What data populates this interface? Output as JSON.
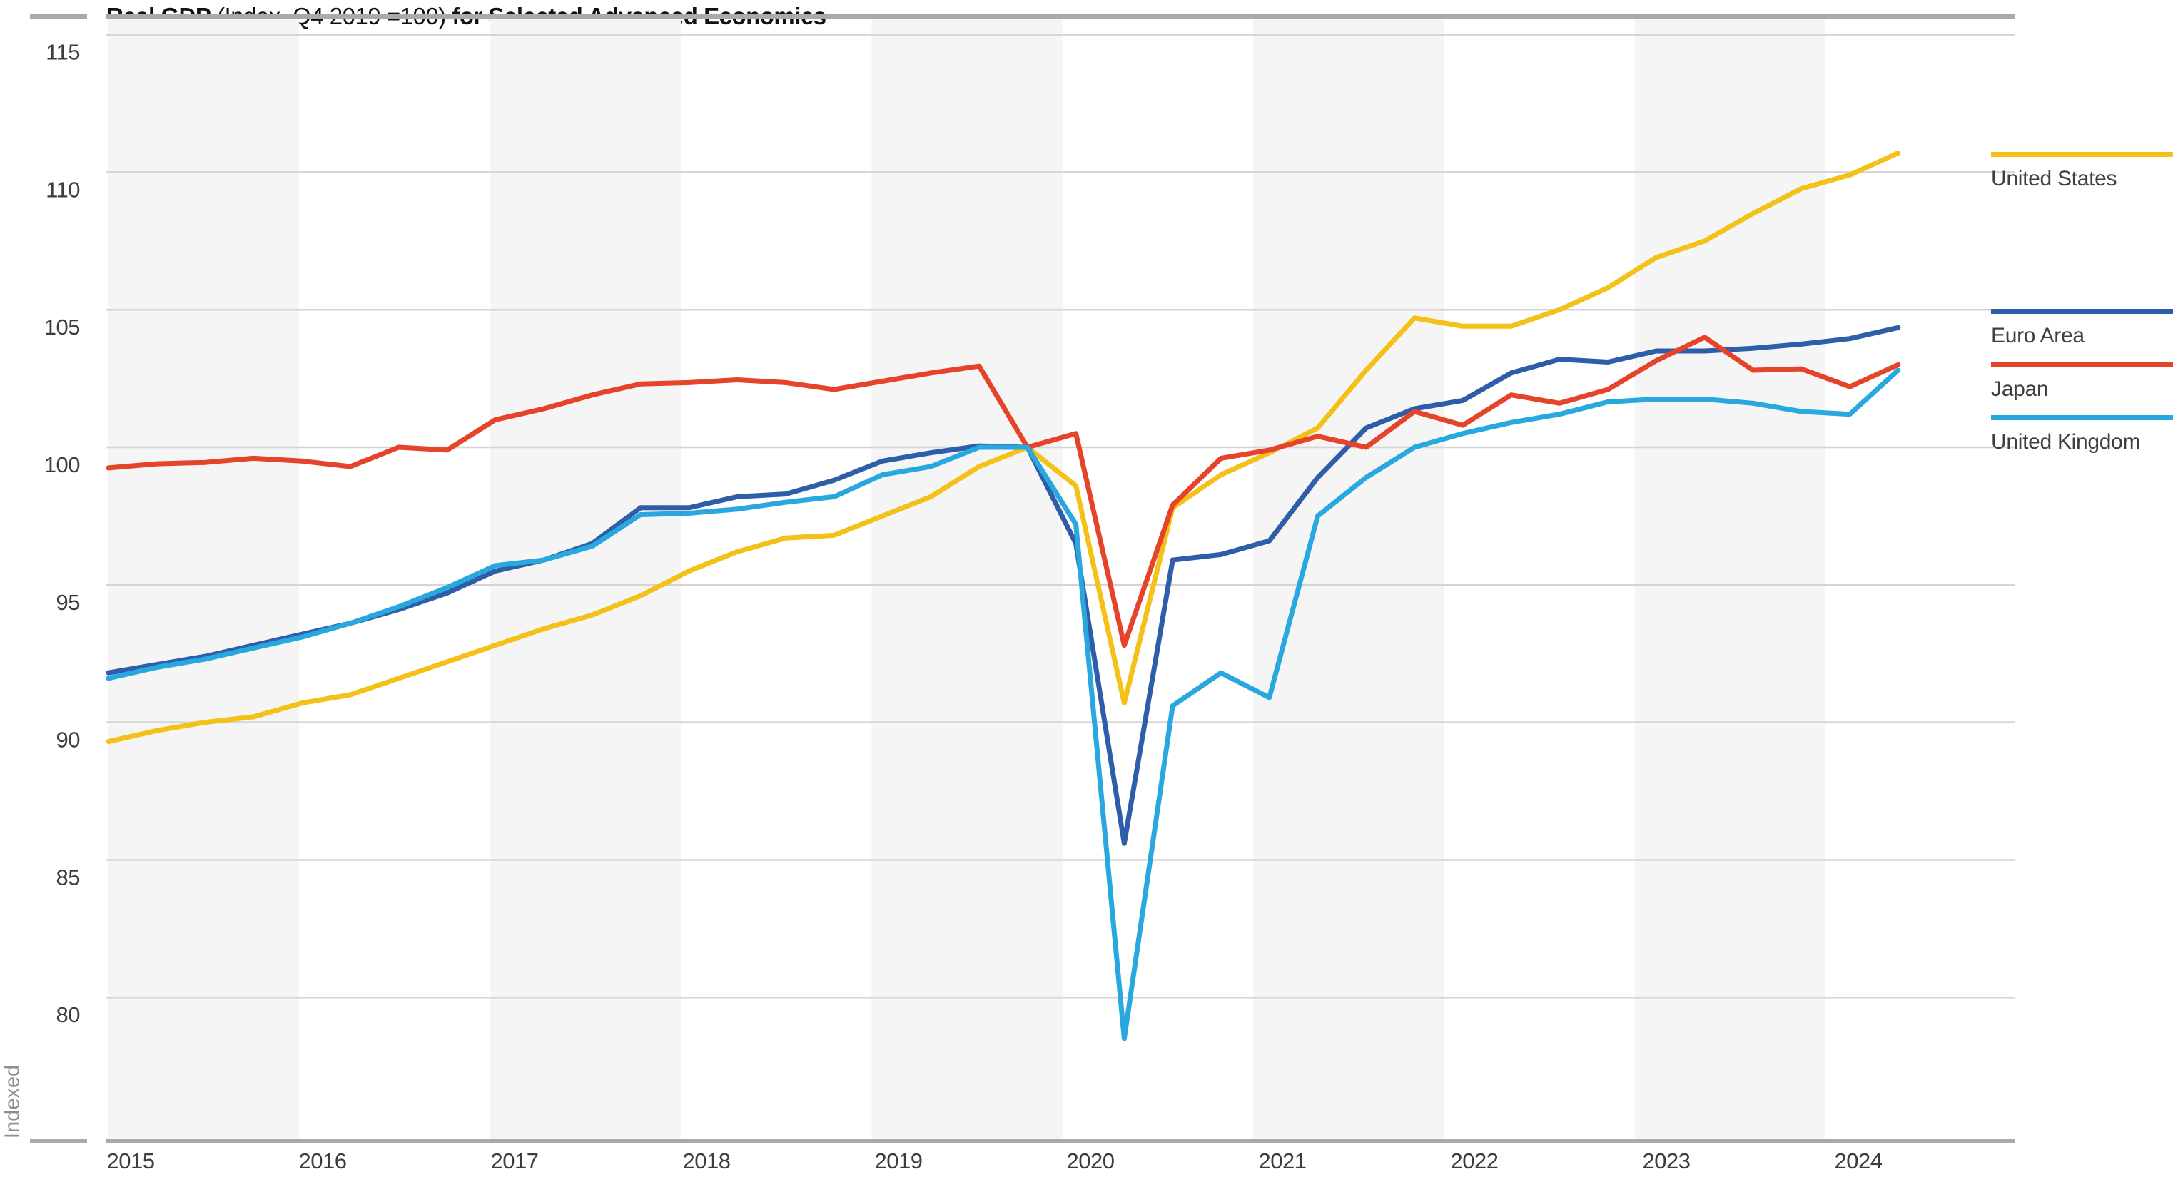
{
  "title": {
    "part1": "Real GDP",
    "part2": " (Index, Q4 2019 =100) ",
    "part3": "for Selected Advanced Economies"
  },
  "y_axis": {
    "label": "Indexed",
    "ticks": [
      115,
      110,
      105,
      100,
      95,
      90,
      85,
      80
    ]
  },
  "x_axis": {
    "years": [
      "2015",
      "2016",
      "2017",
      "2018",
      "2019",
      "2020",
      "2021",
      "2022",
      "2023",
      "2024"
    ]
  },
  "legend": {
    "position": "right",
    "items": [
      {
        "label": "United States",
        "color": "#F3C117"
      },
      {
        "label": "Euro Area",
        "color": "#2F5EA9"
      },
      {
        "label": "Japan",
        "color": "#E5432A"
      },
      {
        "label": "United Kingdom",
        "color": "#29A8E0"
      }
    ]
  },
  "chart_data": {
    "type": "line",
    "title": "Real GDP (Index, Q4 2019 =100) for Selected Advanced Economies",
    "xlabel": "",
    "ylabel": "Indexed",
    "ylim": [
      74.8,
      115.7
    ],
    "grid": "horizontal",
    "shaded_year_bands": [
      "2015",
      "2017",
      "2019",
      "2021",
      "2023"
    ],
    "x": [
      "Q1 2015",
      "Q2 2015",
      "Q3 2015",
      "Q4 2015",
      "Q1 2016",
      "Q2 2016",
      "Q3 2016",
      "Q4 2016",
      "Q1 2017",
      "Q2 2017",
      "Q3 2017",
      "Q4 2017",
      "Q1 2018",
      "Q2 2018",
      "Q3 2018",
      "Q4 2018",
      "Q1 2019",
      "Q2 2019",
      "Q3 2019",
      "Q4 2019",
      "Q1 2020",
      "Q2 2020",
      "Q3 2020",
      "Q4 2020",
      "Q1 2021",
      "Q2 2021",
      "Q3 2021",
      "Q4 2021",
      "Q1 2022",
      "Q2 2022",
      "Q3 2022",
      "Q4 2022",
      "Q1 2023",
      "Q2 2023",
      "Q3 2023",
      "Q4 2023",
      "Q1 2024",
      "Q2 2024"
    ],
    "series": [
      {
        "name": "United States",
        "color": "#F3C117",
        "values": [
          89.3,
          89.7,
          90.0,
          90.2,
          90.7,
          91.0,
          91.6,
          92.2,
          92.8,
          93.4,
          93.9,
          94.6,
          95.5,
          96.2,
          96.7,
          96.8,
          97.5,
          98.2,
          99.3,
          100.0,
          98.6,
          90.7,
          97.8,
          99.0,
          99.8,
          100.7,
          102.8,
          104.7,
          104.4,
          104.4,
          105.0,
          105.8,
          106.9,
          107.5,
          108.5,
          109.4,
          109.9,
          110.7
        ]
      },
      {
        "name": "Euro Area",
        "color": "#2F5EA9",
        "values": [
          91.8,
          92.1,
          92.4,
          92.8,
          93.2,
          93.6,
          94.1,
          94.7,
          95.5,
          95.9,
          96.5,
          97.8,
          97.8,
          98.2,
          98.3,
          98.8,
          99.5,
          99.8,
          100.05,
          100.0,
          96.5,
          85.6,
          95.9,
          96.1,
          96.6,
          98.9,
          100.7,
          101.4,
          101.7,
          102.7,
          103.2,
          103.1,
          103.5,
          103.5,
          103.6,
          103.75,
          103.95,
          104.35
        ]
      },
      {
        "name": "Japan",
        "color": "#E5432A",
        "values": [
          99.25,
          99.4,
          99.45,
          99.6,
          99.5,
          99.3,
          100.0,
          99.9,
          101.0,
          101.4,
          101.9,
          102.3,
          102.35,
          102.45,
          102.35,
          102.1,
          102.4,
          102.7,
          102.95,
          100.0,
          100.5,
          92.8,
          97.9,
          99.6,
          99.9,
          100.4,
          100.0,
          101.3,
          100.8,
          101.9,
          101.6,
          102.1,
          103.15,
          104.0,
          102.8,
          102.85,
          102.2,
          103.0
        ]
      },
      {
        "name": "United Kingdom",
        "color": "#29A8E0",
        "values": [
          91.6,
          92.0,
          92.3,
          92.7,
          93.1,
          93.6,
          94.2,
          94.9,
          95.7,
          95.9,
          96.4,
          97.55,
          97.6,
          97.75,
          98.0,
          98.2,
          99.0,
          99.3,
          100.0,
          100.0,
          97.2,
          78.5,
          90.6,
          91.8,
          90.9,
          97.5,
          98.9,
          100.0,
          100.5,
          100.9,
          101.2,
          101.65,
          101.75,
          101.75,
          101.6,
          101.3,
          101.2,
          102.8
        ]
      }
    ]
  }
}
